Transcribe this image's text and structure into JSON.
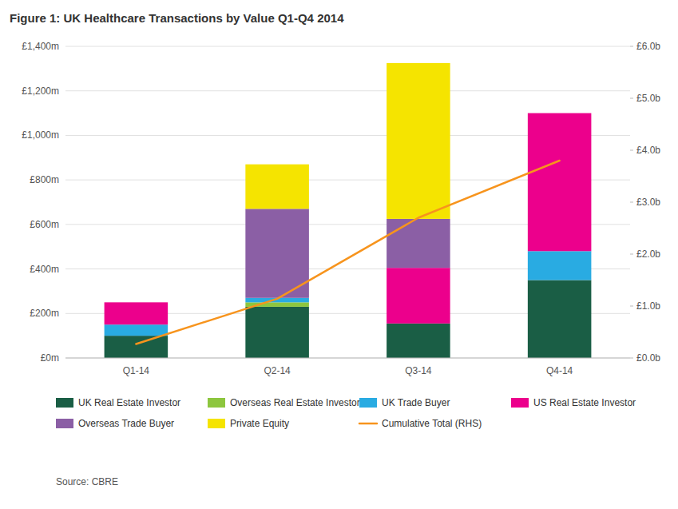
{
  "chart_data": {
    "type": "bar",
    "stacked": true,
    "title": "Figure 1: UK Healthcare Transactions by Value Q1-Q4 2014",
    "categories": [
      "Q1-14",
      "Q2-14",
      "Q3-14",
      "Q4-14"
    ],
    "series": [
      {
        "name": "UK Real Estate Investor",
        "color": "#1a5e45",
        "values": [
          100,
          230,
          155,
          350
        ]
      },
      {
        "name": "Overseas Real Estate Investor",
        "color": "#8dc63f",
        "values": [
          0,
          20,
          0,
          0
        ]
      },
      {
        "name": "UK Trade Buyer",
        "color": "#29abe2",
        "values": [
          50,
          20,
          0,
          130
        ]
      },
      {
        "name": "US Real Estate Investor",
        "color": "#ec008c",
        "values": [
          100,
          0,
          250,
          620
        ]
      },
      {
        "name": "Overseas Trade Buyer",
        "color": "#8b5fa5",
        "values": [
          0,
          400,
          220,
          0
        ]
      },
      {
        "name": "Private Equity",
        "color": "#f5e400",
        "values": [
          0,
          200,
          700,
          0
        ]
      },
      {
        "name": "Cumulative Total (RHS)",
        "type": "line",
        "axis": "y2",
        "color": "#f7941d",
        "values": [
          0.27,
          1.14,
          2.7,
          3.8
        ]
      }
    ],
    "ylim": [
      0,
      1400
    ],
    "yticks": [
      {
        "value": 0,
        "label": "£0m"
      },
      {
        "value": 200,
        "label": "£200m"
      },
      {
        "value": 400,
        "label": "£400m"
      },
      {
        "value": 600,
        "label": "£600m"
      },
      {
        "value": 800,
        "label": "£800m"
      },
      {
        "value": 1000,
        "label": "£1,000m"
      },
      {
        "value": 1200,
        "label": "£1,200m"
      },
      {
        "value": 1400,
        "label": "£1,400m"
      }
    ],
    "y2lim": [
      0,
      6.0
    ],
    "y2ticks": [
      {
        "value": 0.0,
        "label": "£0.0b"
      },
      {
        "value": 1.0,
        "label": "£1.0b"
      },
      {
        "value": 2.0,
        "label": "£2.0b"
      },
      {
        "value": 3.0,
        "label": "£3.0b"
      },
      {
        "value": 4.0,
        "label": "£4.0b"
      },
      {
        "value": 5.0,
        "label": "£5.0b"
      },
      {
        "value": 6.0,
        "label": "£6.0b"
      }
    ],
    "grid": true,
    "legend": "bottom",
    "annotations": [
      "Source: CBRE"
    ]
  }
}
